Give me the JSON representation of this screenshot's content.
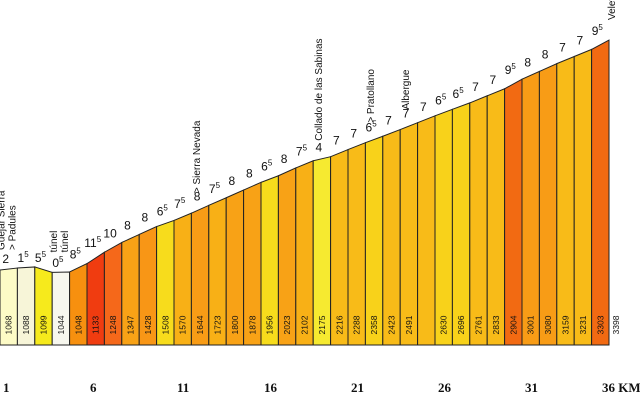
{
  "chart_data": {
    "type": "bar",
    "title": "",
    "xlabel": "KM",
    "ylabel": "",
    "x_tick_labels": [
      "1",
      "6",
      "11",
      "16",
      "21",
      "26",
      "31",
      "36 KM"
    ],
    "x_tick_km": [
      1,
      6,
      11,
      16,
      21,
      26,
      31,
      36
    ],
    "km": [
      1,
      2,
      3,
      4,
      5,
      6,
      7,
      8,
      9,
      10,
      11,
      12,
      13,
      14,
      15,
      16,
      17,
      18,
      19,
      20,
      21,
      22,
      23,
      24,
      25,
      26,
      27,
      28,
      29,
      30,
      31,
      32,
      33,
      34,
      35
    ],
    "elevations": [
      1068,
      1088,
      1099,
      1044,
      1048,
      1133,
      1248,
      1347,
      1428,
      1508,
      1570,
      1644,
      1723,
      1800,
      1878,
      1956,
      2023,
      2102,
      2175,
      2216,
      2288,
      2358,
      2423,
      2491,
      null,
      2630,
      2696,
      2761,
      2833,
      2904,
      3001,
      3080,
      3159,
      3231,
      3303
    ],
    "final_elevation": 3398,
    "gradients": [
      2,
      1.5,
      5.5,
      0.5,
      8.5,
      11.5,
      10,
      8,
      8,
      6.5,
      7.5,
      8,
      7.5,
      8,
      8,
      6.5,
      8,
      7.5,
      4,
      7,
      7,
      6.5,
      7,
      7,
      7,
      6.5,
      6.5,
      7,
      7,
      9.5,
      8,
      8,
      7,
      7,
      9.5
    ],
    "colors": [
      "#fdfbc6",
      "#f7f5d8",
      "#f6ea1c",
      "#f7f7ee",
      "#f7900f",
      "#f03c10",
      "#f5681a",
      "#f8a216",
      "#f89616",
      "#f7dc1c",
      "#f8b016",
      "#f89c16",
      "#f8b016",
      "#f8a216",
      "#f8a216",
      "#f7dc1c",
      "#f8a216",
      "#f8b016",
      "#f6ea30",
      "#f8bb18",
      "#f8bb18",
      "#f8d21a",
      "#f8bb18",
      "#f8bb18",
      "#f8bb18",
      "#f8d21a",
      "#f8d21a",
      "#f8bb18",
      "#f8bb18",
      "#f26a12",
      "#f89c16",
      "#f89c16",
      "#f8bb18",
      "#f8bb18",
      "#f26a12"
    ],
    "places": [
      {
        "km": 1,
        "lines": [
          "Güéjar Sierra",
          "> Padules"
        ]
      },
      {
        "km": 4,
        "lines": [
          "túnel",
          "túnel"
        ]
      },
      {
        "km": 12,
        "lines": [
          "> Sierra Nevada"
        ]
      },
      {
        "km": 19,
        "lines": [
          "Collado de las Sabinas"
        ]
      },
      {
        "km": 22,
        "lines": [
          "> Pratollano"
        ]
      },
      {
        "km": 24,
        "lines": [
          "Albergue"
        ]
      },
      {
        "km": 36,
        "lines": [
          "Veleta"
        ]
      }
    ],
    "grid": false,
    "legend": "none"
  }
}
